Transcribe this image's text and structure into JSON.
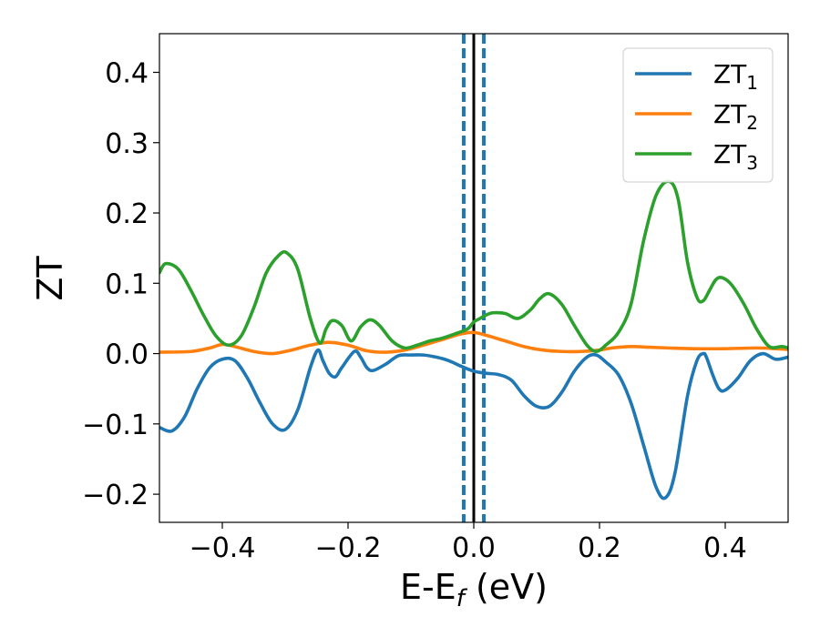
{
  "chart_data": {
    "type": "line",
    "xlabel": "E-E",
    "xlabel_sub": "f",
    "xlabel_unit": " (eV)",
    "ylabel": "ZT",
    "xlim": [
      -0.5,
      0.5
    ],
    "ylim": [
      -0.24,
      0.455
    ],
    "x_ticks": [
      -0.4,
      -0.2,
      0.0,
      0.2,
      0.4
    ],
    "x_tick_labels": [
      "−0.4",
      "−0.2",
      "0.0",
      "0.2",
      "0.4"
    ],
    "y_ticks": [
      -0.2,
      -0.1,
      0.0,
      0.1,
      0.2,
      0.3,
      0.4
    ],
    "y_tick_labels": [
      "−0.2",
      "−0.1",
      "0.0",
      "0.1",
      "0.2",
      "0.3",
      "0.4"
    ],
    "grid": false,
    "legend_position": "top-right",
    "vlines": [
      {
        "x": 0.0,
        "color": "#000000",
        "style": "solid"
      },
      {
        "x": -0.016,
        "color": "#1f77b4",
        "style": "dashed"
      },
      {
        "x": 0.016,
        "color": "#1f77b4",
        "style": "dashed"
      }
    ],
    "series": [
      {
        "name": "ZT",
        "name_sub": "1",
        "color": "#1f77b4",
        "x": [
          -0.5,
          -0.48,
          -0.46,
          -0.44,
          -0.42,
          -0.4,
          -0.38,
          -0.36,
          -0.34,
          -0.32,
          -0.3,
          -0.28,
          -0.26,
          -0.248,
          -0.24,
          -0.23,
          -0.22,
          -0.21,
          -0.19,
          -0.18,
          -0.17,
          -0.16,
          -0.14,
          -0.12,
          -0.1,
          -0.08,
          -0.06,
          -0.04,
          -0.02,
          0.0,
          0.02,
          0.04,
          0.06,
          0.08,
          0.1,
          0.12,
          0.14,
          0.16,
          0.18,
          0.195,
          0.21,
          0.23,
          0.25,
          0.27,
          0.29,
          0.305,
          0.32,
          0.34,
          0.355,
          0.365,
          0.37,
          0.38,
          0.39,
          0.4,
          0.42,
          0.44,
          0.46,
          0.48,
          0.5
        ],
        "y": [
          -0.105,
          -0.11,
          -0.09,
          -0.05,
          -0.02,
          -0.008,
          -0.01,
          -0.035,
          -0.07,
          -0.1,
          -0.108,
          -0.08,
          -0.02,
          0.005,
          -0.01,
          -0.028,
          -0.033,
          -0.02,
          0.003,
          -0.005,
          -0.02,
          -0.024,
          -0.015,
          -0.003,
          -0.002,
          -0.002,
          -0.005,
          -0.01,
          -0.018,
          -0.025,
          -0.028,
          -0.03,
          -0.038,
          -0.06,
          -0.075,
          -0.075,
          -0.055,
          -0.025,
          -0.005,
          -0.002,
          -0.012,
          -0.03,
          -0.07,
          -0.13,
          -0.19,
          -0.205,
          -0.17,
          -0.06,
          -0.01,
          0.0,
          -0.005,
          -0.03,
          -0.05,
          -0.052,
          -0.035,
          -0.01,
          0.0,
          -0.008,
          -0.005
        ]
      },
      {
        "name": "ZT",
        "name_sub": "2",
        "color": "#ff7f0e",
        "x": [
          -0.5,
          -0.45,
          -0.42,
          -0.4,
          -0.38,
          -0.35,
          -0.32,
          -0.29,
          -0.26,
          -0.23,
          -0.2,
          -0.17,
          -0.14,
          -0.11,
          -0.08,
          -0.05,
          -0.02,
          0.0,
          0.02,
          0.05,
          0.08,
          0.11,
          0.14,
          0.17,
          0.2,
          0.22,
          0.25,
          0.28,
          0.31,
          0.35,
          0.4,
          0.45,
          0.48,
          0.5
        ],
        "y": [
          0.002,
          0.003,
          0.008,
          0.013,
          0.01,
          0.003,
          0.0,
          0.005,
          0.012,
          0.016,
          0.012,
          0.004,
          0.002,
          0.005,
          0.012,
          0.02,
          0.028,
          0.03,
          0.026,
          0.018,
          0.01,
          0.005,
          0.003,
          0.003,
          0.005,
          0.008,
          0.01,
          0.009,
          0.008,
          0.007,
          0.007,
          0.008,
          0.007,
          0.006
        ]
      },
      {
        "name": "ZT",
        "name_sub": "3",
        "color": "#2ca02c",
        "x": [
          -0.5,
          -0.49,
          -0.47,
          -0.45,
          -0.43,
          -0.41,
          -0.39,
          -0.37,
          -0.35,
          -0.33,
          -0.31,
          -0.297,
          -0.28,
          -0.26,
          -0.245,
          -0.235,
          -0.225,
          -0.21,
          -0.195,
          -0.18,
          -0.165,
          -0.15,
          -0.13,
          -0.11,
          -0.09,
          -0.07,
          -0.05,
          -0.03,
          -0.01,
          0.0,
          0.01,
          0.02,
          0.03,
          0.05,
          0.07,
          0.09,
          0.105,
          0.12,
          0.14,
          0.16,
          0.18,
          0.195,
          0.21,
          0.23,
          0.25,
          0.27,
          0.29,
          0.31,
          0.325,
          0.34,
          0.355,
          0.365,
          0.375,
          0.385,
          0.395,
          0.41,
          0.43,
          0.45,
          0.47,
          0.49,
          0.5
        ],
        "y": [
          0.115,
          0.128,
          0.12,
          0.09,
          0.055,
          0.025,
          0.012,
          0.025,
          0.065,
          0.115,
          0.14,
          0.143,
          0.12,
          0.05,
          0.015,
          0.035,
          0.047,
          0.04,
          0.018,
          0.038,
          0.048,
          0.04,
          0.018,
          0.008,
          0.012,
          0.018,
          0.022,
          0.028,
          0.035,
          0.045,
          0.05,
          0.055,
          0.058,
          0.057,
          0.05,
          0.062,
          0.078,
          0.085,
          0.07,
          0.04,
          0.012,
          0.003,
          0.012,
          0.03,
          0.07,
          0.16,
          0.225,
          0.245,
          0.22,
          0.13,
          0.08,
          0.075,
          0.09,
          0.105,
          0.108,
          0.098,
          0.07,
          0.035,
          0.01,
          0.01,
          0.008
        ]
      }
    ]
  }
}
